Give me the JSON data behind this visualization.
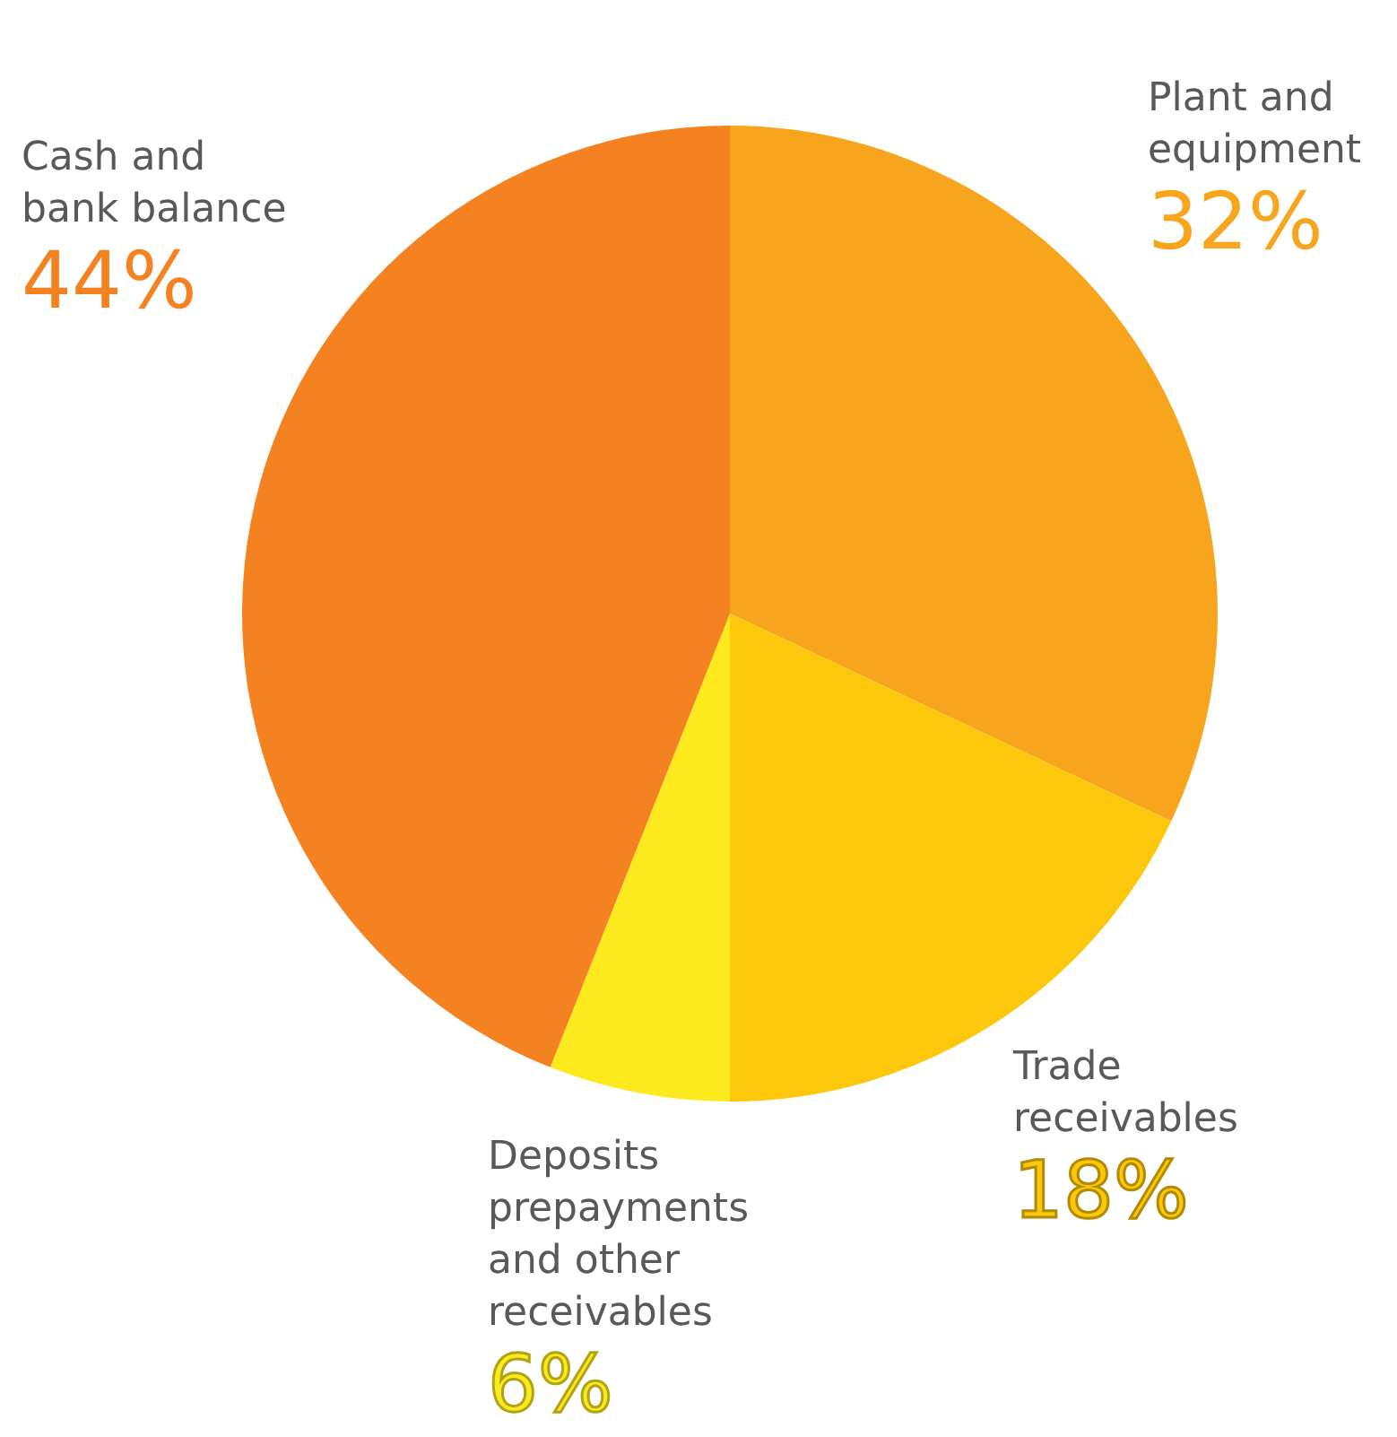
{
  "chart_data": {
    "type": "pie",
    "categories": [
      "Plant and equipment",
      "Trade receivables",
      "Deposits prepayments and other receivables",
      "Cash and bank balance"
    ],
    "values": [
      32,
      18,
      6,
      44
    ],
    "value_labels": [
      "32%",
      "18%",
      "6%",
      "44%"
    ],
    "colors": [
      "#f7a51c",
      "#fdc70c",
      "#fcea1f",
      "#f58220"
    ]
  }
}
